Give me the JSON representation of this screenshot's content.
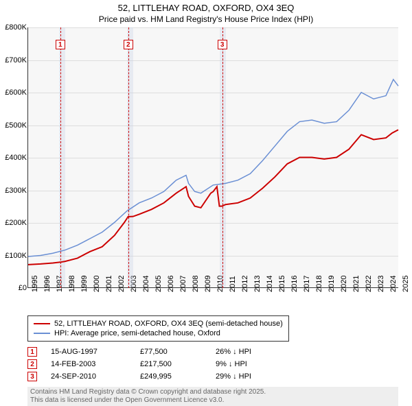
{
  "title": "52, LITTLEHAY ROAD, OXFORD, OX4 3EQ",
  "subtitle": "Price paid vs. HM Land Registry's House Price Index (HPI)",
  "chart": {
    "type": "line",
    "background_color": "#f7f7f7",
    "grid_color": "#dddddd",
    "xlim": [
      1995,
      2025
    ],
    "ylim": [
      0,
      800000
    ],
    "ytick_step": 100000,
    "y_ticks": [
      "£0",
      "£100K",
      "£200K",
      "£300K",
      "£400K",
      "£500K",
      "£600K",
      "£700K",
      "£800K"
    ],
    "x_ticks": [
      1995,
      1996,
      1997,
      1998,
      1999,
      2000,
      2001,
      2002,
      2003,
      2004,
      2005,
      2006,
      2007,
      2008,
      2009,
      2010,
      2011,
      2012,
      2013,
      2014,
      2015,
      2016,
      2017,
      2018,
      2019,
      2020,
      2021,
      2022,
      2023,
      2024,
      2025
    ],
    "shaded_bands": [
      [
        1997.5,
        1998.0
      ],
      [
        2003.0,
        2003.5
      ],
      [
        2010.5,
        2011.0
      ]
    ],
    "series": [
      {
        "name": "52, LITTLEHAY ROAD, OXFORD, OX4 3EQ (semi-detached house)",
        "color": "#cc0000",
        "line_width": 2,
        "data": [
          [
            1995,
            70000
          ],
          [
            1996,
            72000
          ],
          [
            1997,
            75000
          ],
          [
            1997.6,
            77500
          ],
          [
            1998,
            80000
          ],
          [
            1999,
            90000
          ],
          [
            2000,
            110000
          ],
          [
            2001,
            125000
          ],
          [
            2002,
            160000
          ],
          [
            2002.8,
            200000
          ],
          [
            2003.1,
            217500
          ],
          [
            2003.5,
            218000
          ],
          [
            2004,
            225000
          ],
          [
            2005,
            240000
          ],
          [
            2006,
            260000
          ],
          [
            2007,
            290000
          ],
          [
            2007.8,
            310000
          ],
          [
            2008,
            280000
          ],
          [
            2008.5,
            250000
          ],
          [
            2009,
            245000
          ],
          [
            2009.8,
            290000
          ],
          [
            2010,
            295000
          ],
          [
            2010.3,
            310000
          ],
          [
            2010.5,
            250000
          ],
          [
            2010.7,
            249995
          ],
          [
            2011,
            255000
          ],
          [
            2012,
            260000
          ],
          [
            2013,
            275000
          ],
          [
            2014,
            305000
          ],
          [
            2015,
            340000
          ],
          [
            2016,
            380000
          ],
          [
            2017,
            400000
          ],
          [
            2018,
            400000
          ],
          [
            2019,
            395000
          ],
          [
            2020,
            400000
          ],
          [
            2021,
            425000
          ],
          [
            2022,
            470000
          ],
          [
            2023,
            455000
          ],
          [
            2024,
            460000
          ],
          [
            2024.5,
            475000
          ],
          [
            2025,
            485000
          ]
        ]
      },
      {
        "name": "HPI: Average price, semi-detached house, Oxford",
        "color": "#6a8fd4",
        "line_width": 1.5,
        "data": [
          [
            1995,
            95000
          ],
          [
            1996,
            98000
          ],
          [
            1997,
            105000
          ],
          [
            1998,
            115000
          ],
          [
            1999,
            130000
          ],
          [
            2000,
            150000
          ],
          [
            2001,
            170000
          ],
          [
            2002,
            200000
          ],
          [
            2003,
            235000
          ],
          [
            2004,
            260000
          ],
          [
            2005,
            275000
          ],
          [
            2006,
            295000
          ],
          [
            2007,
            330000
          ],
          [
            2007.8,
            345000
          ],
          [
            2008,
            320000
          ],
          [
            2008.5,
            295000
          ],
          [
            2009,
            290000
          ],
          [
            2010,
            315000
          ],
          [
            2011,
            320000
          ],
          [
            2012,
            330000
          ],
          [
            2013,
            350000
          ],
          [
            2014,
            390000
          ],
          [
            2015,
            435000
          ],
          [
            2016,
            480000
          ],
          [
            2017,
            510000
          ],
          [
            2018,
            515000
          ],
          [
            2019,
            505000
          ],
          [
            2020,
            510000
          ],
          [
            2021,
            545000
          ],
          [
            2022,
            600000
          ],
          [
            2023,
            580000
          ],
          [
            2024,
            590000
          ],
          [
            2024.6,
            640000
          ],
          [
            2025,
            620000
          ]
        ]
      }
    ],
    "event_markers": [
      {
        "n": "1",
        "x": 1997.6,
        "color": "#cc0000"
      },
      {
        "n": "2",
        "x": 2003.1,
        "color": "#cc0000"
      },
      {
        "n": "3",
        "x": 2010.7,
        "color": "#cc0000"
      }
    ]
  },
  "legend": {
    "items": [
      {
        "color": "#cc0000",
        "label": "52, LITTLEHAY ROAD, OXFORD, OX4 3EQ (semi-detached house)"
      },
      {
        "color": "#6a8fd4",
        "label": "HPI: Average price, semi-detached house, Oxford"
      }
    ]
  },
  "events_table": {
    "rows": [
      {
        "n": "1",
        "color": "#cc0000",
        "date": "15-AUG-1997",
        "price": "£77,500",
        "change": "26% ↓ HPI"
      },
      {
        "n": "2",
        "color": "#cc0000",
        "date": "14-FEB-2003",
        "price": "£217,500",
        "change": "9% ↓ HPI"
      },
      {
        "n": "3",
        "color": "#cc0000",
        "date": "24-SEP-2010",
        "price": "£249,995",
        "change": "29% ↓ HPI"
      }
    ]
  },
  "footer": {
    "line1": "Contains HM Land Registry data © Crown copyright and database right 2025.",
    "line2": "This data is licensed under the Open Government Licence v3.0."
  }
}
